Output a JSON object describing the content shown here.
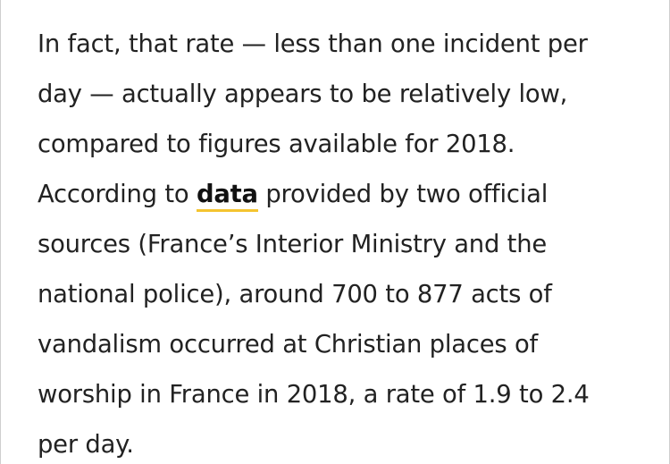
{
  "article": {
    "line1": "In fact, that rate — less than one incident per",
    "line2": "day — actually appears to be relatively low,",
    "line3": "compared to figures available for 2018.",
    "line4_before": "According to ",
    "line4_link": "data",
    "line4_after": " provided by two official",
    "line5": "sources (France’s Interior Ministry and the",
    "line6": "national police), around 700 to 877 acts of",
    "line7": "vandalism occurred at Christian places of",
    "line8": "worship in France in 2018, a rate of 1.9 to 2.4",
    "line9": "per day."
  },
  "colors": {
    "text": "#222222",
    "link_underline": "#f4c430",
    "background": "#ffffff"
  }
}
